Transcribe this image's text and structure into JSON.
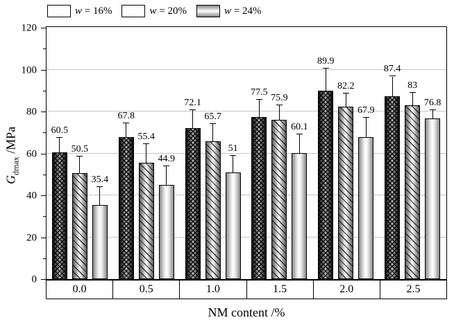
{
  "chart_data": {
    "type": "bar",
    "title": "",
    "xlabel": "NM content /%",
    "ylabel": {
      "symbol": "G",
      "subscript": "dmax",
      "unit": " /MPa"
    },
    "categories": [
      "0.0",
      "0.5",
      "1.0",
      "1.5",
      "2.0",
      "2.5"
    ],
    "series": [
      {
        "name": "w = 16%",
        "var": "w",
        "rest": " = 16%",
        "pattern": "crosshatch",
        "values": [
          60.5,
          67.8,
          72.1,
          77.5,
          89.9,
          87.4
        ],
        "labels": [
          "60.5",
          "67.8",
          "72.1",
          "77.5",
          "89.9",
          "87.4"
        ],
        "errors": [
          7,
          6.5,
          8.5,
          8,
          10.5,
          9.3
        ]
      },
      {
        "name": "w = 20%",
        "var": "w",
        "rest": " = 20%",
        "pattern": "diagonal-hatch",
        "values": [
          50.5,
          55.4,
          65.7,
          75.9,
          82.2,
          83
        ],
        "labels": [
          "50.5",
          "55.4",
          "65.7",
          "75.9",
          "82.2",
          "83"
        ],
        "errors": [
          8,
          9,
          8.5,
          7,
          6.5,
          6
        ]
      },
      {
        "name": "w = 24%",
        "var": "w",
        "rest": " = 24%",
        "pattern": "plain-gradient",
        "values": [
          35.4,
          44.9,
          51,
          60.1,
          67.9,
          76.8
        ],
        "labels": [
          "35.4",
          "44.9",
          "51",
          "60.1",
          "67.9",
          "76.8"
        ],
        "errors": [
          8.7,
          9,
          8,
          9,
          9,
          4
        ]
      }
    ],
    "y_axis": {
      "min": 0,
      "max": 120,
      "major_step": 20,
      "minor_step": 10,
      "major_ticks": [
        0,
        20,
        40,
        60,
        80,
        100,
        120
      ],
      "minor_ticks": [
        10,
        30,
        50,
        70,
        90,
        110
      ]
    },
    "gridlines": [
      20,
      40,
      60,
      80,
      100
    ],
    "grid": true,
    "legend_position": "top-left",
    "error_bars": true,
    "colors": {
      "frame": "#000000",
      "grid": "#c6c6c6",
      "text": "#000000",
      "background": "#ffffff"
    }
  }
}
